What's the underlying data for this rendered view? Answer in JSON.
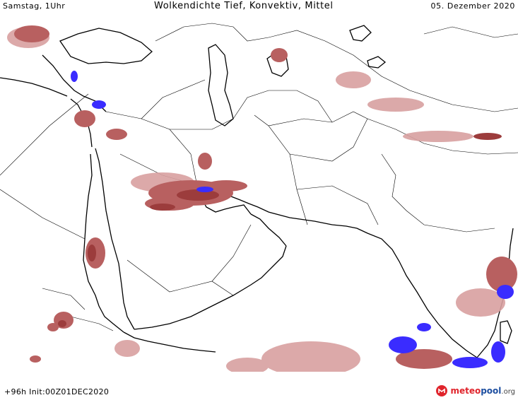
{
  "header": {
    "left": "Samstag, 1Uhr",
    "title": "Wolkendichte  Tief, Konvektiv, Mittel",
    "date": "05. Dezember 2020"
  },
  "footer": {
    "run": "+96h  Init:00Z01DEC2020",
    "brand_part1": "meteo",
    "brand_part2": "pool",
    "brand_part3": ".org"
  },
  "colors": {
    "cloud_dark": "#9c3c3c",
    "cloud_mid": "#b86060",
    "cloud_light": "#d8a0a0",
    "convective": "#3a2cff",
    "brand_red": "#e0242c",
    "brand_blue": "#1e4fa0"
  },
  "icons": {
    "brand": "meteopool-logo-icon"
  }
}
